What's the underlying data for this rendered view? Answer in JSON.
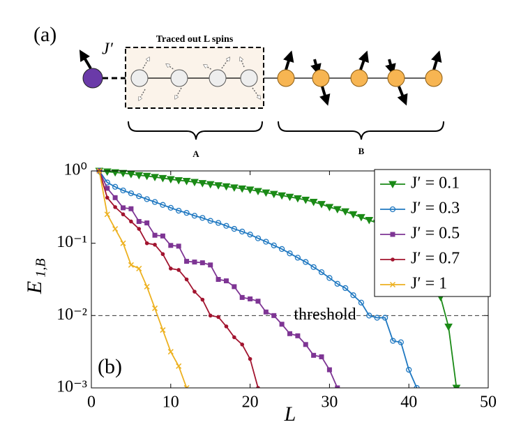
{
  "diagram": {
    "panel_label": "(a)",
    "coupling_label": "J′",
    "box_title": "Traced out L spins",
    "region_a": "A",
    "region_b": "B"
  },
  "chart_data": {
    "type": "line",
    "panel_label": "(b)",
    "xlabel": "L",
    "ylabel": {
      "main": "E",
      "sub": "1,B"
    },
    "xlim": [
      0,
      50
    ],
    "xticks": [
      0,
      10,
      20,
      30,
      40,
      50
    ],
    "ylim": [
      0.001,
      1
    ],
    "log_y": true,
    "yticks": [
      {
        "value": 1,
        "label": "10⁰"
      },
      {
        "value": 0.1,
        "label": "10⁻¹"
      },
      {
        "value": 0.01,
        "label": "10⁻²"
      },
      {
        "value": 0.001,
        "label": "10⁻³"
      }
    ],
    "threshold": {
      "value": 0.01,
      "label": "threshold"
    },
    "legend": "top-right",
    "series": [
      {
        "name": "J′ = 0.1",
        "color": "#1a8a16",
        "marker": "triangle-down",
        "x": [
          1,
          2,
          3,
          4,
          5,
          6,
          7,
          8,
          9,
          10,
          11,
          12,
          13,
          14,
          15,
          16,
          17,
          18,
          19,
          20,
          21,
          22,
          23,
          24,
          25,
          26,
          27,
          28,
          29,
          30,
          31,
          32,
          33,
          34,
          35,
          36,
          37,
          38,
          39,
          40,
          41,
          42,
          43,
          44,
          45,
          46
        ],
        "values": [
          1,
          0.977,
          0.955,
          0.933,
          0.902,
          0.871,
          0.851,
          0.822,
          0.794,
          0.767,
          0.741,
          0.724,
          0.7,
          0.676,
          0.653,
          0.631,
          0.61,
          0.589,
          0.569,
          0.55,
          0.525,
          0.501,
          0.479,
          0.457,
          0.437,
          0.417,
          0.398,
          0.372,
          0.347,
          0.316,
          0.295,
          0.275,
          0.251,
          0.229,
          0.209,
          0.191,
          0.17,
          0.151,
          0.132,
          0.112,
          0.089,
          0.063,
          0.035,
          0.018,
          0.007,
          0.001
        ]
      },
      {
        "name": "J′ = 0.3",
        "color": "#1f78c1",
        "marker": "circle",
        "x": [
          1,
          2,
          3,
          4,
          5,
          6,
          7,
          8,
          9,
          10,
          11,
          12,
          13,
          14,
          15,
          16,
          17,
          18,
          19,
          20,
          21,
          22,
          23,
          24,
          25,
          26,
          27,
          28,
          29,
          30,
          31,
          32,
          33,
          34,
          35,
          36,
          37,
          38,
          39,
          40,
          41
        ],
        "values": [
          1,
          0.692,
          0.603,
          0.537,
          0.49,
          0.447,
          0.407,
          0.372,
          0.339,
          0.309,
          0.282,
          0.263,
          0.24,
          0.224,
          0.204,
          0.191,
          0.174,
          0.158,
          0.145,
          0.132,
          0.117,
          0.105,
          0.0933,
          0.0832,
          0.0724,
          0.0631,
          0.055,
          0.0468,
          0.0398,
          0.0331,
          0.0275,
          0.024,
          0.0191,
          0.0151,
          0.01,
          0.00933,
          0.00933,
          0.00447,
          0.00427,
          0.00178,
          0.001
        ]
      },
      {
        "name": "J′ = 0.5",
        "color": "#7e3594",
        "marker": "square",
        "x": [
          1,
          2,
          3,
          4,
          5,
          6,
          7,
          8,
          9,
          10,
          11,
          12,
          13,
          14,
          15,
          16,
          17,
          18,
          19,
          20,
          21,
          22,
          23,
          24,
          25,
          26,
          27,
          28,
          29,
          30,
          31
        ],
        "values": [
          1,
          0.575,
          0.427,
          0.309,
          0.3,
          0.2,
          0.191,
          0.129,
          0.126,
          0.0933,
          0.0912,
          0.0562,
          0.055,
          0.0537,
          0.0501,
          0.0316,
          0.0302,
          0.0251,
          0.0178,
          0.017,
          0.0158,
          0.0112,
          0.01,
          0.00759,
          0.00562,
          0.00525,
          0.00398,
          0.00282,
          0.00269,
          0.00178,
          0.001
        ]
      },
      {
        "name": "J′ = 0.7",
        "color": "#a2142f",
        "marker": "dot",
        "x": [
          1,
          2,
          3,
          4,
          5,
          6,
          7,
          8,
          9,
          10,
          11,
          12,
          13,
          14,
          15,
          16,
          17,
          18,
          19,
          20,
          21
        ],
        "values": [
          1,
          0.427,
          0.316,
          0.251,
          0.2,
          0.158,
          0.1,
          0.0955,
          0.0708,
          0.0447,
          0.0427,
          0.0316,
          0.0214,
          0.0166,
          0.01,
          0.00955,
          0.00708,
          0.00501,
          0.00398,
          0.00251,
          0.001
        ]
      },
      {
        "name": "J′ = 1",
        "color": "#edb120",
        "marker": "x",
        "x": [
          1,
          2,
          3,
          4,
          5,
          6,
          7,
          8,
          9,
          10,
          11,
          12
        ],
        "values": [
          1,
          0.251,
          0.158,
          0.1,
          0.0501,
          0.0447,
          0.0251,
          0.0126,
          0.00631,
          0.00316,
          0.002,
          0.001
        ]
      }
    ]
  }
}
